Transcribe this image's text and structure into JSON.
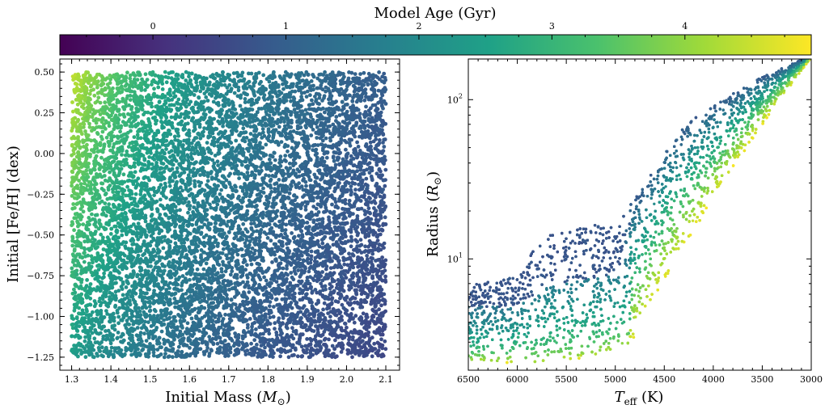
{
  "colorbar": {
    "label": "Model Age (Gyr)",
    "range": [
      -0.7,
      4.95
    ],
    "ticks": [
      0,
      1,
      2,
      3,
      4
    ],
    "colormap": [
      "#440154",
      "#46327e",
      "#365c8d",
      "#277f8e",
      "#1fa187",
      "#4ac16d",
      "#a0da39",
      "#fde725"
    ]
  },
  "chart_data": [
    {
      "type": "scatter",
      "xlabel": "Initial Mass (M⊙)",
      "ylabel": "Initial [Fe/H] (dex)",
      "xlim": [
        1.27,
        2.135
      ],
      "ylim": [
        -1.33,
        0.58
      ],
      "xticks": [
        1.3,
        1.4,
        1.5,
        1.6,
        1.7,
        1.8,
        1.9,
        2.0,
        2.1
      ],
      "xtick_labels": [
        "1.3",
        "1.4",
        "1.5",
        "1.6",
        "1.7",
        "1.8",
        "1.9",
        "2.0",
        "2.1"
      ],
      "yticks": [
        0.5,
        0.25,
        0.0,
        -0.25,
        -0.5,
        -0.75,
        -1.0,
        -1.25
      ],
      "ytick_labels": [
        "0.50",
        "0.25",
        "0.00",
        "−0.25",
        "−0.50",
        "−0.75",
        "−1.00",
        "−1.25"
      ],
      "x_range_of_points": [
        1.3,
        2.1
      ],
      "y_range_of_points": [
        -1.25,
        0.5
      ],
      "color_variable": "Model Age (Gyr)"
    },
    {
      "type": "scatter",
      "xlabel": "T_eff (K)",
      "ylabel": "Radius (R⊙)",
      "x_inverted": true,
      "xlim": [
        6500,
        3000
      ],
      "ylim": [
        2.0,
        180
      ],
      "y_scale": "log",
      "xticks": [
        6500,
        6000,
        5500,
        5000,
        4500,
        4000,
        3500,
        3000
      ],
      "xtick_labels": [
        "6500",
        "6000",
        "5500",
        "5000",
        "4500",
        "4000",
        "3500",
        "3000"
      ],
      "yticks": [
        10,
        100
      ],
      "ytick_labels": [
        "10^1",
        "10^2"
      ],
      "color_variable": "Model Age (Gyr)"
    }
  ]
}
